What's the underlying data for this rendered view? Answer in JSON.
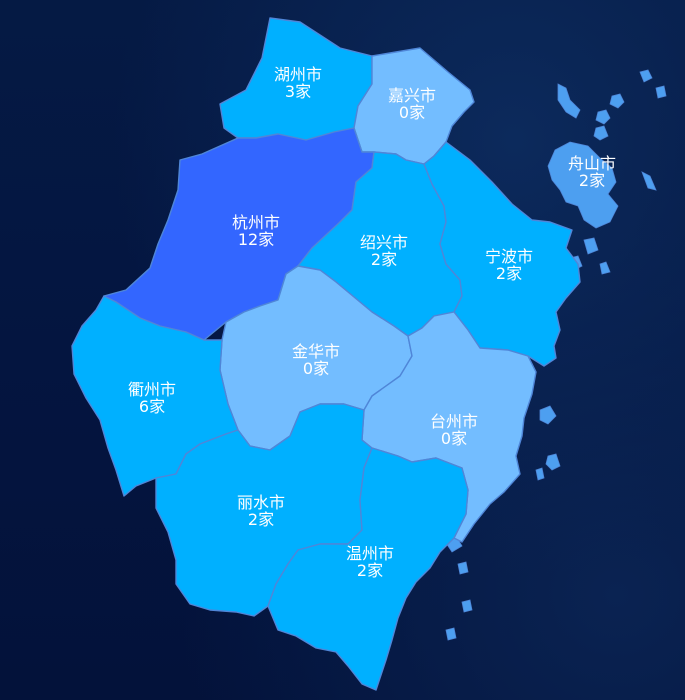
{
  "colors": {
    "level_high": "#3366ff",
    "level_mid": "#00b0ff",
    "level_zero": "#73bdff",
    "islands": "#4d9ff0",
    "border": "#4f86d8",
    "label_text": "#ffffff"
  },
  "regions": [
    {
      "id": "huzhou",
      "name": "湖州市",
      "count": 3,
      "count_label": "3家"
    },
    {
      "id": "jiaxing",
      "name": "嘉兴市",
      "count": 0,
      "count_label": "0家"
    },
    {
      "id": "zhoushan",
      "name": "舟山市",
      "count": 2,
      "count_label": "2家"
    },
    {
      "id": "hangzhou",
      "name": "杭州市",
      "count": 12,
      "count_label": "12家"
    },
    {
      "id": "shaoxing",
      "name": "绍兴市",
      "count": 2,
      "count_label": "2家"
    },
    {
      "id": "ningbo",
      "name": "宁波市",
      "count": 2,
      "count_label": "2家"
    },
    {
      "id": "jinhua",
      "name": "金华市",
      "count": 0,
      "count_label": "0家"
    },
    {
      "id": "quzhou",
      "name": "衢州市",
      "count": 6,
      "count_label": "6家"
    },
    {
      "id": "taizhou",
      "name": "台州市",
      "count": 0,
      "count_label": "0家"
    },
    {
      "id": "lishui",
      "name": "丽水市",
      "count": 2,
      "count_label": "2家"
    },
    {
      "id": "wenzhou",
      "name": "温州市",
      "count": 2,
      "count_label": "2家"
    }
  ]
}
